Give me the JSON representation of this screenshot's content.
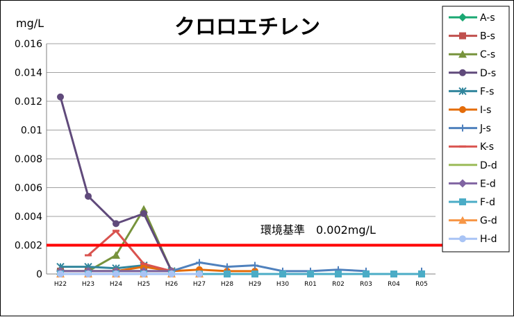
{
  "chart_data": {
    "type": "line",
    "title": "クロロエチレン",
    "y_unit_label": "mg/L",
    "ylim": [
      0,
      0.016
    ],
    "yticks": [
      "0",
      "0.002",
      "0.004",
      "0.006",
      "0.008",
      "0.01",
      "0.012",
      "0.014",
      "0.016"
    ],
    "ytick_values": [
      0,
      0.002,
      0.004,
      0.006,
      0.008,
      0.01,
      0.012,
      0.014,
      0.016
    ],
    "categories": [
      "H22",
      "H23",
      "H24",
      "H25",
      "H26",
      "H27",
      "H28",
      "H29",
      "H30",
      "R01",
      "R02",
      "R03",
      "R04",
      "R05"
    ],
    "grid": true,
    "legend_position": "right",
    "reference_line": {
      "value": 0.002,
      "label": "環境基準　0.002mg/L",
      "color": "#ff0000"
    },
    "series": [
      {
        "name": "A-s",
        "color": "#1aa873",
        "marker": "diamond",
        "values": [
          0.0002,
          0.0002,
          0.0002,
          0.0002,
          null,
          null,
          null,
          null,
          null,
          null,
          null,
          null,
          null,
          null
        ]
      },
      {
        "name": "B-s",
        "color": "#c0504d",
        "marker": "square",
        "values": [
          0.0002,
          0.0002,
          0.0002,
          0.0002,
          null,
          null,
          null,
          null,
          null,
          null,
          null,
          null,
          null,
          null
        ]
      },
      {
        "name": "C-s",
        "color": "#77933c",
        "marker": "triangle",
        "values": [
          0.0002,
          0.0002,
          0.0013,
          0.0045,
          0.0002,
          null,
          null,
          null,
          null,
          null,
          null,
          null,
          null,
          null
        ]
      },
      {
        "name": "D-s",
        "color": "#604a7b",
        "marker": "circle",
        "values": [
          0.0123,
          0.0054,
          0.0035,
          0.0042,
          0.0002,
          null,
          null,
          null,
          null,
          null,
          null,
          null,
          null,
          null
        ]
      },
      {
        "name": "F-s",
        "color": "#31859c",
        "marker": "star",
        "values": [
          0.0005,
          0.0005,
          0.0004,
          0.0006,
          0.0002,
          null,
          null,
          null,
          null,
          null,
          null,
          null,
          null,
          null
        ]
      },
      {
        "name": "I-s",
        "color": "#e46c0a",
        "marker": "circle",
        "values": [
          0.0002,
          0.0002,
          0.0002,
          0.0005,
          0.0002,
          0.0003,
          0.0002,
          0.0002,
          null,
          null,
          null,
          null,
          null,
          null
        ]
      },
      {
        "name": "J-s",
        "color": "#4f81bd",
        "marker": "plus",
        "values": [
          0.0002,
          0.0002,
          0.0002,
          0.0002,
          0.0002,
          0.0008,
          0.0005,
          0.0006,
          0.0002,
          0.0002,
          0.0003,
          0.0002,
          null,
          0.0002
        ]
      },
      {
        "name": "K-s",
        "color": "#d9534f",
        "marker": "dash",
        "values": [
          null,
          0.0013,
          0.003,
          0.0007,
          0.0002,
          null,
          null,
          null,
          null,
          null,
          null,
          null,
          null,
          null
        ]
      },
      {
        "name": "D-d",
        "color": "#9bbb59",
        "marker": "none",
        "values": [
          0.0002,
          0.0002,
          0.0002,
          0.0002,
          0.0002,
          null,
          null,
          null,
          null,
          null,
          null,
          null,
          null,
          null
        ]
      },
      {
        "name": "E-d",
        "color": "#8064a2",
        "marker": "diamond",
        "values": [
          0.0002,
          0.0002,
          0.0002,
          0.0002,
          0.0002,
          null,
          null,
          null,
          null,
          null,
          null,
          null,
          null,
          null
        ]
      },
      {
        "name": "F-d",
        "color": "#4bacc6",
        "marker": "square",
        "values": [
          0,
          0,
          0,
          0,
          0,
          0,
          0,
          0,
          0,
          0,
          0,
          0,
          0,
          0
        ]
      },
      {
        "name": "G-d",
        "color": "#f79646",
        "marker": "triangle",
        "values": [
          0,
          0,
          0,
          0,
          0,
          0,
          null,
          null,
          null,
          null,
          null,
          null,
          null,
          null
        ]
      },
      {
        "name": "H-d",
        "color": "#a9c4f5",
        "marker": "circle",
        "values": [
          0,
          0,
          0,
          0,
          0,
          0,
          null,
          null,
          null,
          null,
          null,
          null,
          null,
          null
        ]
      }
    ]
  }
}
